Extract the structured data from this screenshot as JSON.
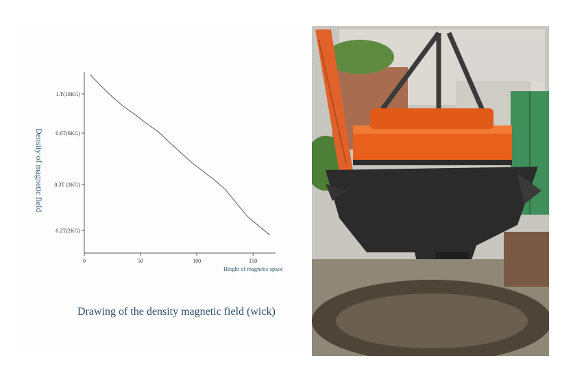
{
  "chart_data": {
    "type": "line",
    "xlabel": "Height of magnetic space",
    "ylabel": "Density of magnetic field",
    "caption": "Drawing of the density magnetic field (wick)",
    "x_ticks": [
      0,
      50,
      100,
      150
    ],
    "y_ticks": [
      "0.2T(2KG)",
      "0.3T (3KG)",
      "0.6T(6KG)",
      "1.T(10KG)"
    ],
    "xlim": [
      0,
      170
    ],
    "ylim": [
      0.15,
      1.35
    ],
    "y_tick_values": [
      0.2,
      0.3,
      0.6,
      1.0
    ],
    "series": [
      {
        "x": [
          5,
          15,
          25,
          35,
          45,
          55,
          65,
          75,
          85,
          95,
          105,
          115,
          125,
          135,
          145,
          155,
          165
        ],
        "y": [
          1.2,
          1.08,
          0.97,
          0.87,
          0.79,
          0.7,
          0.62,
          0.55,
          0.49,
          0.43,
          0.38,
          0.33,
          0.29,
          0.26,
          0.23,
          0.21,
          0.19
        ]
      }
    ],
    "grid": false,
    "colors": {
      "curve": "#6b5f68",
      "axis": "#555555",
      "label": "#2e5a76"
    }
  },
  "photo": {
    "description_icon": "electromagnet-lifting-scrap-photo",
    "colors": {
      "magnet": "#e8601c",
      "chain": "#3c3c3c",
      "scrap": "#2a2a2a",
      "door": "#3f8f5b"
    }
  }
}
